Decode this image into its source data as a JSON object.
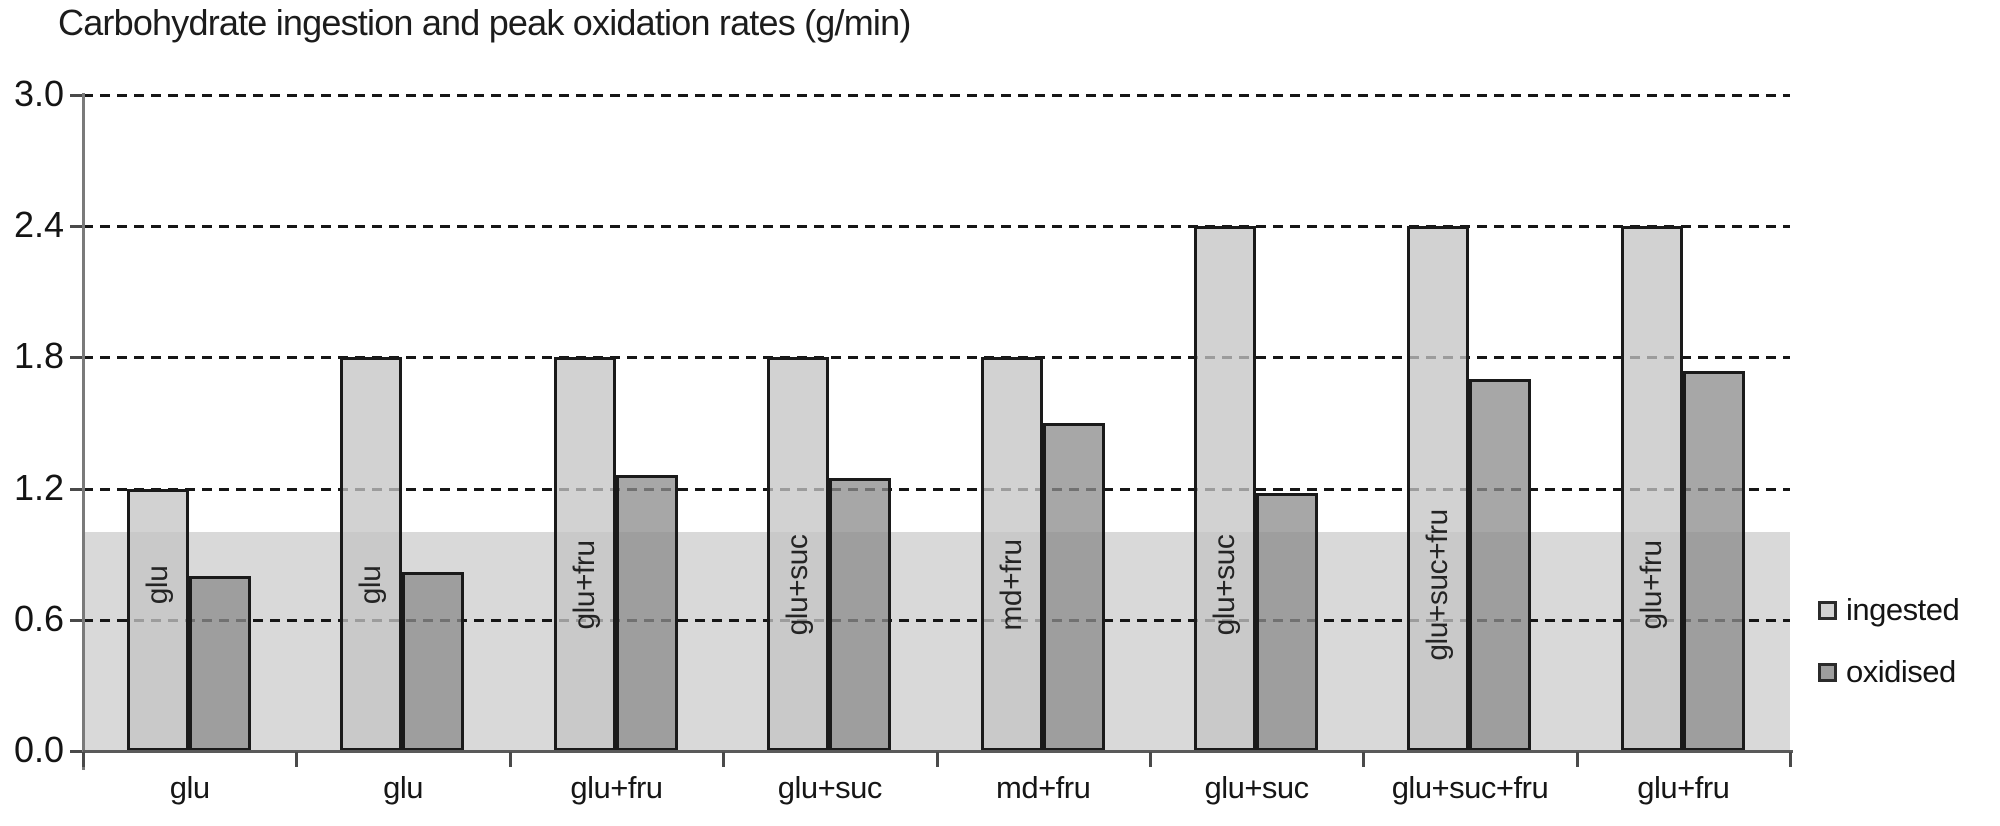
{
  "title": "Carbohydrate ingestion and peak oxidation rates (g/min)",
  "chart_data": {
    "type": "bar",
    "title": "Carbohydrate ingestion and peak oxidation rates (g/min)",
    "unit": "g/min",
    "categories": [
      "glu",
      "glu",
      "glu+fru",
      "glu+suc",
      "md+fru",
      "glu+suc",
      "glu+suc+fru",
      "glu+fru"
    ],
    "series": [
      {
        "name": "ingested",
        "values": [
          1.2,
          1.8,
          1.8,
          1.8,
          1.8,
          2.4,
          2.4,
          2.4
        ]
      },
      {
        "name": "oxidised",
        "values": [
          0.8,
          0.82,
          1.26,
          1.25,
          1.5,
          1.18,
          1.7,
          1.74
        ]
      }
    ],
    "in_bar_labels": [
      "glu",
      "glu",
      "glu+fru",
      "glu+suc",
      "md+fru",
      "glu+suc",
      "glu+suc+fru",
      "glu+fru"
    ],
    "y_ticks": [
      "0.0",
      "0.6",
      "1.2",
      "1.8",
      "2.4",
      "3.0"
    ],
    "ylim": [
      0,
      3.0
    ],
    "gridlines": "horizontal-dashed",
    "reference_band": {
      "from": 0,
      "to": 1.0
    },
    "legend_position": "right"
  },
  "legend": {
    "items": [
      {
        "label": "ingested"
      },
      {
        "label": "oxidised"
      }
    ]
  },
  "colors": {
    "background": "#ffffff",
    "band": "#d9d9d9",
    "ingested_fill": "rgba(196,196,196,0.77)",
    "oxidised_fill": "rgba(141,141,141,0.77)",
    "ingested_swatch": "#d2d2d2",
    "oxidised_swatch": "#9e9e9e",
    "bar_border": "#1a1a1a",
    "gridline": "#161616",
    "axis": "#7a7a7a",
    "baseline": "#5a5a5a",
    "text": "#1c1c1c"
  }
}
